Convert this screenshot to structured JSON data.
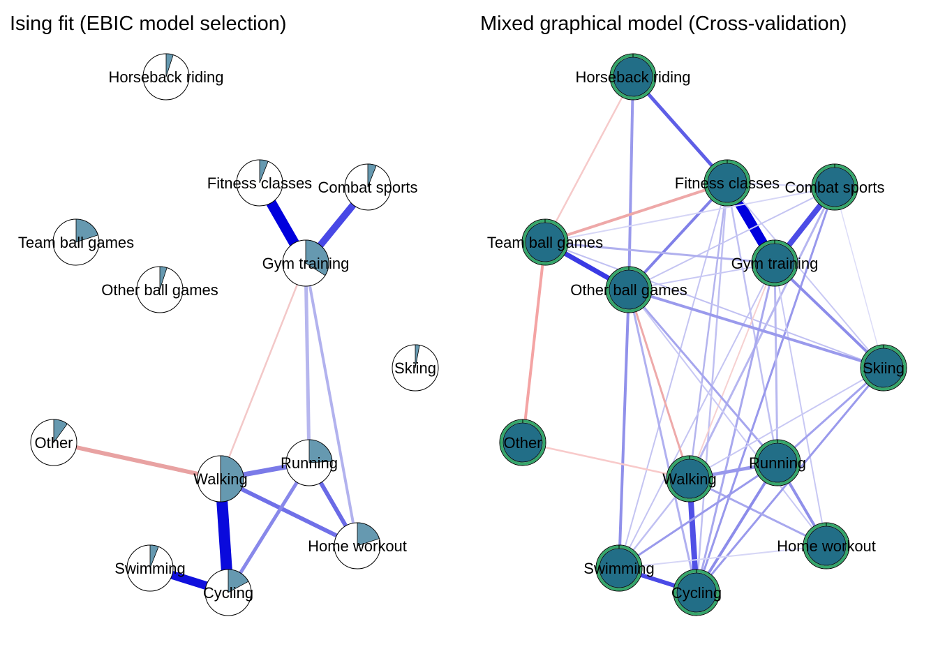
{
  "panels": [
    {
      "title": "Ising fit (EBIC model selection)",
      "style": "pie",
      "edges": [
        [
          "fitness",
          "gym",
          "#0000dd",
          15
        ],
        [
          "combat",
          "gym",
          "#4848e6",
          10
        ],
        [
          "gym",
          "walking",
          "#f3c8c8",
          2.5
        ],
        [
          "gym",
          "running",
          "#b6b6ee",
          5
        ],
        [
          "gym",
          "home",
          "#b2b2ee",
          4
        ],
        [
          "other",
          "walking",
          "#e8a2a2",
          6
        ],
        [
          "walking",
          "running",
          "#7a7ae8",
          7
        ],
        [
          "walking",
          "home",
          "#7070e8",
          6
        ],
        [
          "walking",
          "cycling",
          "#0a0adc",
          16
        ],
        [
          "running",
          "cycling",
          "#8888ea",
          5
        ],
        [
          "running",
          "home",
          "#6a6ae6",
          6
        ],
        [
          "swimming",
          "cycling",
          "#1010dd",
          12
        ]
      ],
      "nodes": [
        {
          "id": "horseback",
          "label": "Horseback riding",
          "value": 0.05
        },
        {
          "id": "fitness",
          "label": "Fitness classes",
          "value": 0.06
        },
        {
          "id": "combat",
          "label": "Combat sports",
          "value": 0.06
        },
        {
          "id": "team",
          "label": "Team ball games",
          "value": 0.2
        },
        {
          "id": "gym",
          "label": "Gym training",
          "value": 0.34
        },
        {
          "id": "otherball",
          "label": "Other ball games",
          "value": 0.05
        },
        {
          "id": "skiing",
          "label": "Skiing",
          "value": 0.03
        },
        {
          "id": "other",
          "label": "Other",
          "value": 0.1
        },
        {
          "id": "running",
          "label": "Running",
          "value": 0.24
        },
        {
          "id": "walking",
          "label": "Walking",
          "value": 0.5
        },
        {
          "id": "home",
          "label": "Home workout",
          "value": 0.2
        },
        {
          "id": "swimming",
          "label": "Swimming",
          "value": 0.06
        },
        {
          "id": "cycling",
          "label": "Cycling",
          "value": 0.17
        }
      ]
    },
    {
      "title": "Mixed graphical model (Cross-validation)",
      "style": "filled",
      "edges": [
        [
          "horseback",
          "fitness",
          "#5e5ee6",
          5
        ],
        [
          "horseback",
          "team",
          "#f6caca",
          2.5
        ],
        [
          "horseback",
          "otherball",
          "#9a9aec",
          4
        ],
        [
          "fitness",
          "gym",
          "#0000dd",
          14
        ],
        [
          "fitness",
          "team",
          "#eea8a8",
          4
        ],
        [
          "fitness",
          "otherball",
          "#8080e8",
          4
        ],
        [
          "fitness",
          "combat",
          "#d4d4f6",
          2
        ],
        [
          "fitness",
          "skiing",
          "#c8c8f4",
          2
        ],
        [
          "fitness",
          "walking",
          "#b4b4ee",
          2.5
        ],
        [
          "fitness",
          "running",
          "#c0c0f2",
          2.5
        ],
        [
          "fitness",
          "swimming",
          "#c4c4f2",
          2
        ],
        [
          "fitness",
          "cycling",
          "#c0c0f2",
          2.5
        ],
        [
          "combat",
          "gym",
          "#4c4ce6",
          8
        ],
        [
          "combat",
          "otherball",
          "#c4c4f2",
          2
        ],
        [
          "combat",
          "team",
          "#d6d6f6",
          2
        ],
        [
          "combat",
          "skiing",
          "#dcdcf8",
          1.5
        ],
        [
          "combat",
          "walking",
          "#b6b6f0",
          3
        ],
        [
          "combat",
          "cycling",
          "#9898ec",
          3
        ],
        [
          "team",
          "otherball",
          "#3a3ae4",
          7
        ],
        [
          "team",
          "gym",
          "#b0b0ee",
          3
        ],
        [
          "team",
          "other",
          "#f4a4a4",
          4
        ],
        [
          "team",
          "skiing",
          "#c0c0f2",
          2
        ],
        [
          "gym",
          "otherball",
          "#c8c8f4",
          2
        ],
        [
          "gym",
          "walking",
          "#f6d0d0",
          2
        ],
        [
          "gym",
          "running",
          "#b8b8f0",
          3
        ],
        [
          "gym",
          "skiing",
          "#8c8cea",
          4
        ],
        [
          "gym",
          "cycling",
          "#a8a8ee",
          3
        ],
        [
          "gym",
          "swimming",
          "#c4c4f2",
          2
        ],
        [
          "gym",
          "home",
          "#c8c8f4",
          2
        ],
        [
          "otherball",
          "skiing",
          "#9a9aec",
          4
        ],
        [
          "otherball",
          "walking",
          "#eeaaaa",
          3
        ],
        [
          "otherball",
          "running",
          "#a6a6ee",
          3
        ],
        [
          "otherball",
          "swimming",
          "#9090ea",
          4
        ],
        [
          "otherball",
          "cycling",
          "#b0b0f0",
          3
        ],
        [
          "otherball",
          "home",
          "#c8c8f4",
          2
        ],
        [
          "skiing",
          "running",
          "#a2a2ee",
          3
        ],
        [
          "skiing",
          "cycling",
          "#9a9aec",
          3
        ],
        [
          "skiing",
          "walking",
          "#c8c8f4",
          2
        ],
        [
          "other",
          "walking",
          "#f8caca",
          2.5
        ],
        [
          "walking",
          "running",
          "#9898ec",
          5
        ],
        [
          "walking",
          "cycling",
          "#5050e6",
          8
        ],
        [
          "walking",
          "swimming",
          "#c0c0f2",
          2.5
        ],
        [
          "walking",
          "home",
          "#a8a8ee",
          3
        ],
        [
          "running",
          "home",
          "#9090ea",
          4
        ],
        [
          "running",
          "cycling",
          "#8c8cea",
          4
        ],
        [
          "running",
          "swimming",
          "#9a9aec",
          3
        ],
        [
          "swimming",
          "cycling",
          "#4a4ae6",
          6
        ],
        [
          "swimming",
          "home",
          "#d6d6f6",
          2
        ]
      ],
      "nodes": [
        {
          "id": "horseback",
          "label": "Horseback riding"
        },
        {
          "id": "fitness",
          "label": "Fitness classes"
        },
        {
          "id": "combat",
          "label": "Combat sports"
        },
        {
          "id": "team",
          "label": "Team ball games"
        },
        {
          "id": "gym",
          "label": "Gym training"
        },
        {
          "id": "otherball",
          "label": "Other ball games"
        },
        {
          "id": "skiing",
          "label": "Skiing"
        },
        {
          "id": "other",
          "label": "Other"
        },
        {
          "id": "running",
          "label": "Running"
        },
        {
          "id": "walking",
          "label": "Walking"
        },
        {
          "id": "home",
          "label": "Home workout"
        },
        {
          "id": "swimming",
          "label": "Swimming"
        },
        {
          "id": "cycling",
          "label": "Cycling"
        }
      ]
    }
  ],
  "colors": {
    "pie_fill": "#6699b0",
    "node_fill": "#226e87",
    "node_ring": "#36a66b",
    "positive_edge": "#0000dd",
    "negative_edge": "#e8a2a2"
  }
}
